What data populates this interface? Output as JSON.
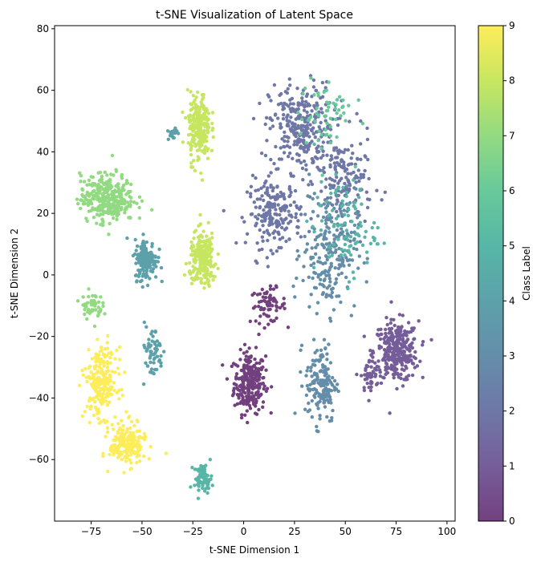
{
  "chart_data": {
    "type": "scatter",
    "title": "t-SNE Visualization of Latent Space",
    "xlabel": "t-SNE Dimension 1",
    "ylabel": "t-SNE Dimension 2",
    "xlim": [
      -93,
      104
    ],
    "ylim": [
      -80,
      81
    ],
    "xticks": [
      -75,
      -50,
      -25,
      0,
      25,
      50,
      75,
      100
    ],
    "yticks": [
      -60,
      -40,
      -20,
      0,
      20,
      40,
      60,
      80
    ],
    "grid": false,
    "colormap": "viridis",
    "alpha": 0.75,
    "colorbar": {
      "label": "Class Label",
      "min": 0,
      "max": 9,
      "ticks": [
        0,
        1,
        2,
        3,
        4,
        5,
        6,
        7,
        8,
        9
      ]
    },
    "clusters": [
      {
        "label": 0,
        "center": [
          3,
          -35
        ],
        "spread": [
          7,
          9
        ],
        "count": 260
      },
      {
        "label": 0,
        "center": [
          12,
          -10
        ],
        "spread": [
          8,
          5
        ],
        "count": 70
      },
      {
        "label": 1,
        "center": [
          75,
          -25
        ],
        "spread": [
          10,
          9
        ],
        "count": 320
      },
      {
        "label": 1,
        "center": [
          62,
          -33
        ],
        "spread": [
          4,
          5
        ],
        "count": 40
      },
      {
        "label": 2,
        "center": [
          28,
          48
        ],
        "spread": [
          14,
          13
        ],
        "count": 300
      },
      {
        "label": 2,
        "center": [
          15,
          20
        ],
        "spread": [
          12,
          10
        ],
        "count": 200
      },
      {
        "label": 2,
        "center": [
          50,
          30
        ],
        "spread": [
          12,
          14
        ],
        "count": 150
      },
      {
        "label": 3,
        "center": [
          42,
          8
        ],
        "spread": [
          12,
          18
        ],
        "count": 230
      },
      {
        "label": 3,
        "center": [
          38,
          -35
        ],
        "spread": [
          7,
          12
        ],
        "count": 160
      },
      {
        "label": 4,
        "center": [
          -48,
          5
        ],
        "spread": [
          5,
          6
        ],
        "count": 160
      },
      {
        "label": 4,
        "center": [
          -45,
          -25
        ],
        "spread": [
          5,
          8
        ],
        "count": 60
      },
      {
        "label": 4,
        "center": [
          -35,
          46
        ],
        "spread": [
          2,
          2
        ],
        "count": 20
      },
      {
        "label": 5,
        "center": [
          -20,
          -66
        ],
        "spread": [
          4,
          4
        ],
        "count": 70
      },
      {
        "label": 5,
        "center": [
          50,
          15
        ],
        "spread": [
          14,
          14
        ],
        "count": 90
      },
      {
        "label": 6,
        "center": [
          40,
          52
        ],
        "spread": [
          12,
          12
        ],
        "count": 60
      },
      {
        "label": 7,
        "center": [
          -67,
          25
        ],
        "spread": [
          12,
          7
        ],
        "count": 320
      },
      {
        "label": 7,
        "center": [
          -75,
          -10
        ],
        "spread": [
          5,
          4
        ],
        "count": 50
      },
      {
        "label": 8,
        "center": [
          -22,
          48
        ],
        "spread": [
          5,
          10
        ],
        "count": 230
      },
      {
        "label": 8,
        "center": [
          -20,
          5
        ],
        "spread": [
          6,
          8
        ],
        "count": 220
      },
      {
        "label": 9,
        "center": [
          -70,
          -35
        ],
        "spread": [
          7,
          10
        ],
        "count": 240
      },
      {
        "label": 9,
        "center": [
          -57,
          -55
        ],
        "spread": [
          8,
          6
        ],
        "count": 200
      }
    ]
  }
}
